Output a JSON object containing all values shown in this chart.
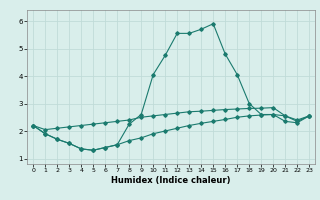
{
  "title": "",
  "xlabel": "Humidex (Indice chaleur)",
  "background_color": "#d9eeeb",
  "grid_color": "#c0dbd8",
  "line_color": "#1a7a6e",
  "xlim": [
    -0.5,
    23.5
  ],
  "ylim": [
    0.8,
    6.4
  ],
  "xticks": [
    0,
    1,
    2,
    3,
    4,
    5,
    6,
    7,
    8,
    9,
    10,
    11,
    12,
    13,
    14,
    15,
    16,
    17,
    18,
    19,
    20,
    21,
    22,
    23
  ],
  "yticks": [
    1,
    2,
    3,
    4,
    5,
    6
  ],
  "x": [
    0,
    1,
    2,
    3,
    4,
    5,
    6,
    7,
    8,
    9,
    10,
    11,
    12,
    13,
    14,
    15,
    16,
    17,
    18,
    19,
    20,
    21,
    22,
    23
  ],
  "y_main": [
    2.2,
    1.9,
    1.7,
    1.55,
    1.35,
    1.3,
    1.4,
    1.5,
    2.25,
    2.6,
    4.05,
    4.75,
    5.55,
    5.55,
    5.7,
    5.9,
    4.8,
    4.05,
    3.0,
    2.6,
    2.6,
    2.55,
    2.35,
    2.55
  ],
  "y_upper": [
    2.2,
    2.05,
    2.1,
    2.15,
    2.2,
    2.25,
    2.3,
    2.35,
    2.4,
    2.5,
    2.55,
    2.6,
    2.65,
    2.7,
    2.72,
    2.75,
    2.78,
    2.8,
    2.82,
    2.83,
    2.85,
    2.55,
    2.4,
    2.55
  ],
  "y_lower": [
    2.2,
    1.9,
    1.7,
    1.55,
    1.35,
    1.3,
    1.4,
    1.5,
    1.65,
    1.75,
    1.9,
    2.0,
    2.1,
    2.2,
    2.28,
    2.35,
    2.42,
    2.5,
    2.55,
    2.58,
    2.6,
    2.35,
    2.3,
    2.55
  ]
}
